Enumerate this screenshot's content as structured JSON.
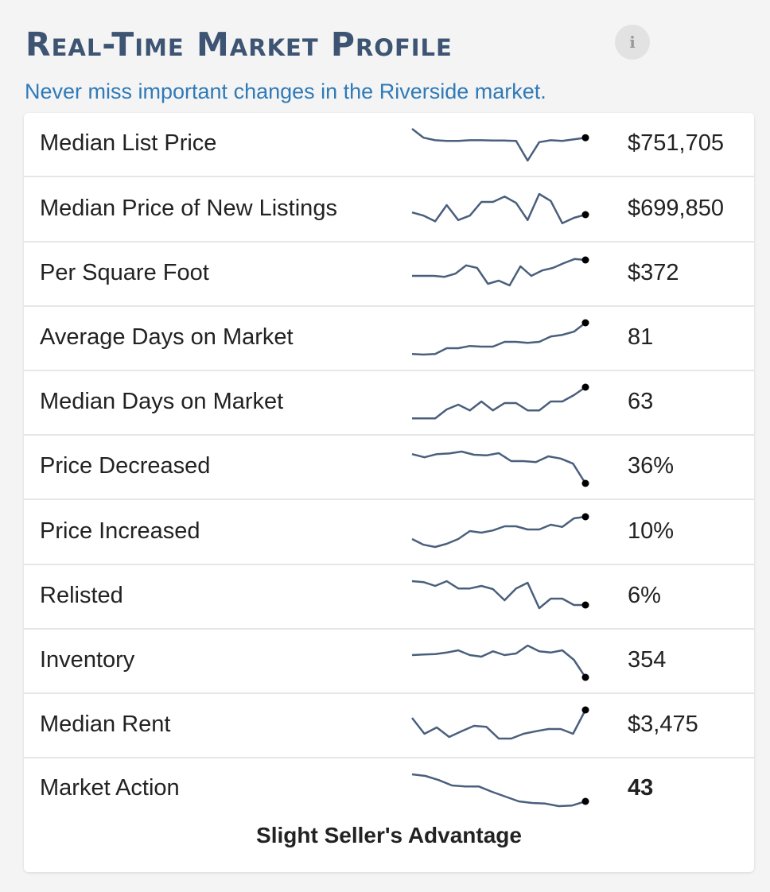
{
  "header": {
    "title": "Real-Time Market Profile",
    "info_icon": "info-icon",
    "info_glyph": "i",
    "subtitle": "Never miss important changes in the Riverside market."
  },
  "colors": {
    "title": "#3e5473",
    "subtitle": "#2f7ab8",
    "sparkline": "#4a5f7c",
    "endpoint": "#000000"
  },
  "chart_data": {
    "type": "line",
    "series": [
      {
        "label": "Median List Price",
        "value": "$751,705",
        "trend": [
          0.0,
          0.28,
          0.36,
          0.38,
          0.38,
          0.36,
          0.36,
          0.37,
          0.37,
          0.38,
          1.0,
          0.42,
          0.36,
          0.38,
          0.33,
          0.28
        ]
      },
      {
        "label": "Median Price of New Listings",
        "value": "$699,850",
        "trend": [
          0.58,
          0.68,
          0.86,
          0.35,
          0.82,
          0.68,
          0.25,
          0.25,
          0.08,
          0.28,
          0.82,
          0.0,
          0.22,
          0.92,
          0.75,
          0.65
        ]
      },
      {
        "label": "Per Square Foot",
        "value": "$372",
        "trend": [
          0.55,
          0.55,
          0.55,
          0.58,
          0.48,
          0.22,
          0.3,
          0.8,
          0.7,
          0.85,
          0.25,
          0.55,
          0.38,
          0.3,
          0.15,
          0.02,
          0.05
        ]
      },
      {
        "label": "Average Days on Market",
        "value": "81",
        "trend": [
          0.98,
          1.0,
          0.98,
          0.8,
          0.8,
          0.73,
          0.75,
          0.75,
          0.6,
          0.6,
          0.63,
          0.6,
          0.43,
          0.38,
          0.28,
          0.0
        ]
      },
      {
        "label": "Median Days on Market",
        "value": "63",
        "trend": [
          0.98,
          0.98,
          0.98,
          0.7,
          0.55,
          0.73,
          0.45,
          0.73,
          0.5,
          0.5,
          0.73,
          0.73,
          0.45,
          0.45,
          0.25,
          0.0
        ]
      },
      {
        "label": "Price Decreased",
        "value": "36%",
        "trend": [
          0.08,
          0.18,
          0.08,
          0.06,
          0.0,
          0.1,
          0.12,
          0.05,
          0.3,
          0.3,
          0.33,
          0.15,
          0.22,
          0.38,
          1.0
        ]
      },
      {
        "label": "Price Increased",
        "value": "10%",
        "trend": [
          0.7,
          0.88,
          0.95,
          0.85,
          0.7,
          0.45,
          0.5,
          0.43,
          0.3,
          0.3,
          0.4,
          0.4,
          0.25,
          0.32,
          0.05,
          0.0
        ]
      },
      {
        "label": "Relisted",
        "value": "6%",
        "trend": [
          0.0,
          0.03,
          0.15,
          0.0,
          0.23,
          0.23,
          0.15,
          0.25,
          0.6,
          0.23,
          0.05,
          0.85,
          0.55,
          0.55,
          0.75,
          0.75
        ]
      },
      {
        "label": "Inventory",
        "value": "354",
        "trend": [
          0.3,
          0.28,
          0.27,
          0.22,
          0.15,
          0.3,
          0.35,
          0.18,
          0.3,
          0.25,
          0.0,
          0.18,
          0.22,
          0.15,
          0.45,
          1.0
        ]
      },
      {
        "label": "Median Rent",
        "value": "$3,475",
        "trend": [
          0.25,
          0.75,
          0.55,
          0.85,
          0.67,
          0.5,
          0.53,
          0.9,
          0.9,
          0.75,
          0.67,
          0.6,
          0.6,
          0.75,
          0.0
        ]
      },
      {
        "label": "Market Action",
        "value": "43",
        "trend": [
          0.0,
          0.05,
          0.18,
          0.35,
          0.38,
          0.38,
          0.55,
          0.7,
          0.85,
          0.9,
          0.92,
          1.0,
          0.98,
          0.85
        ]
      }
    ]
  },
  "footer": {
    "market_action_label": "Slight Seller's Advantage"
  }
}
